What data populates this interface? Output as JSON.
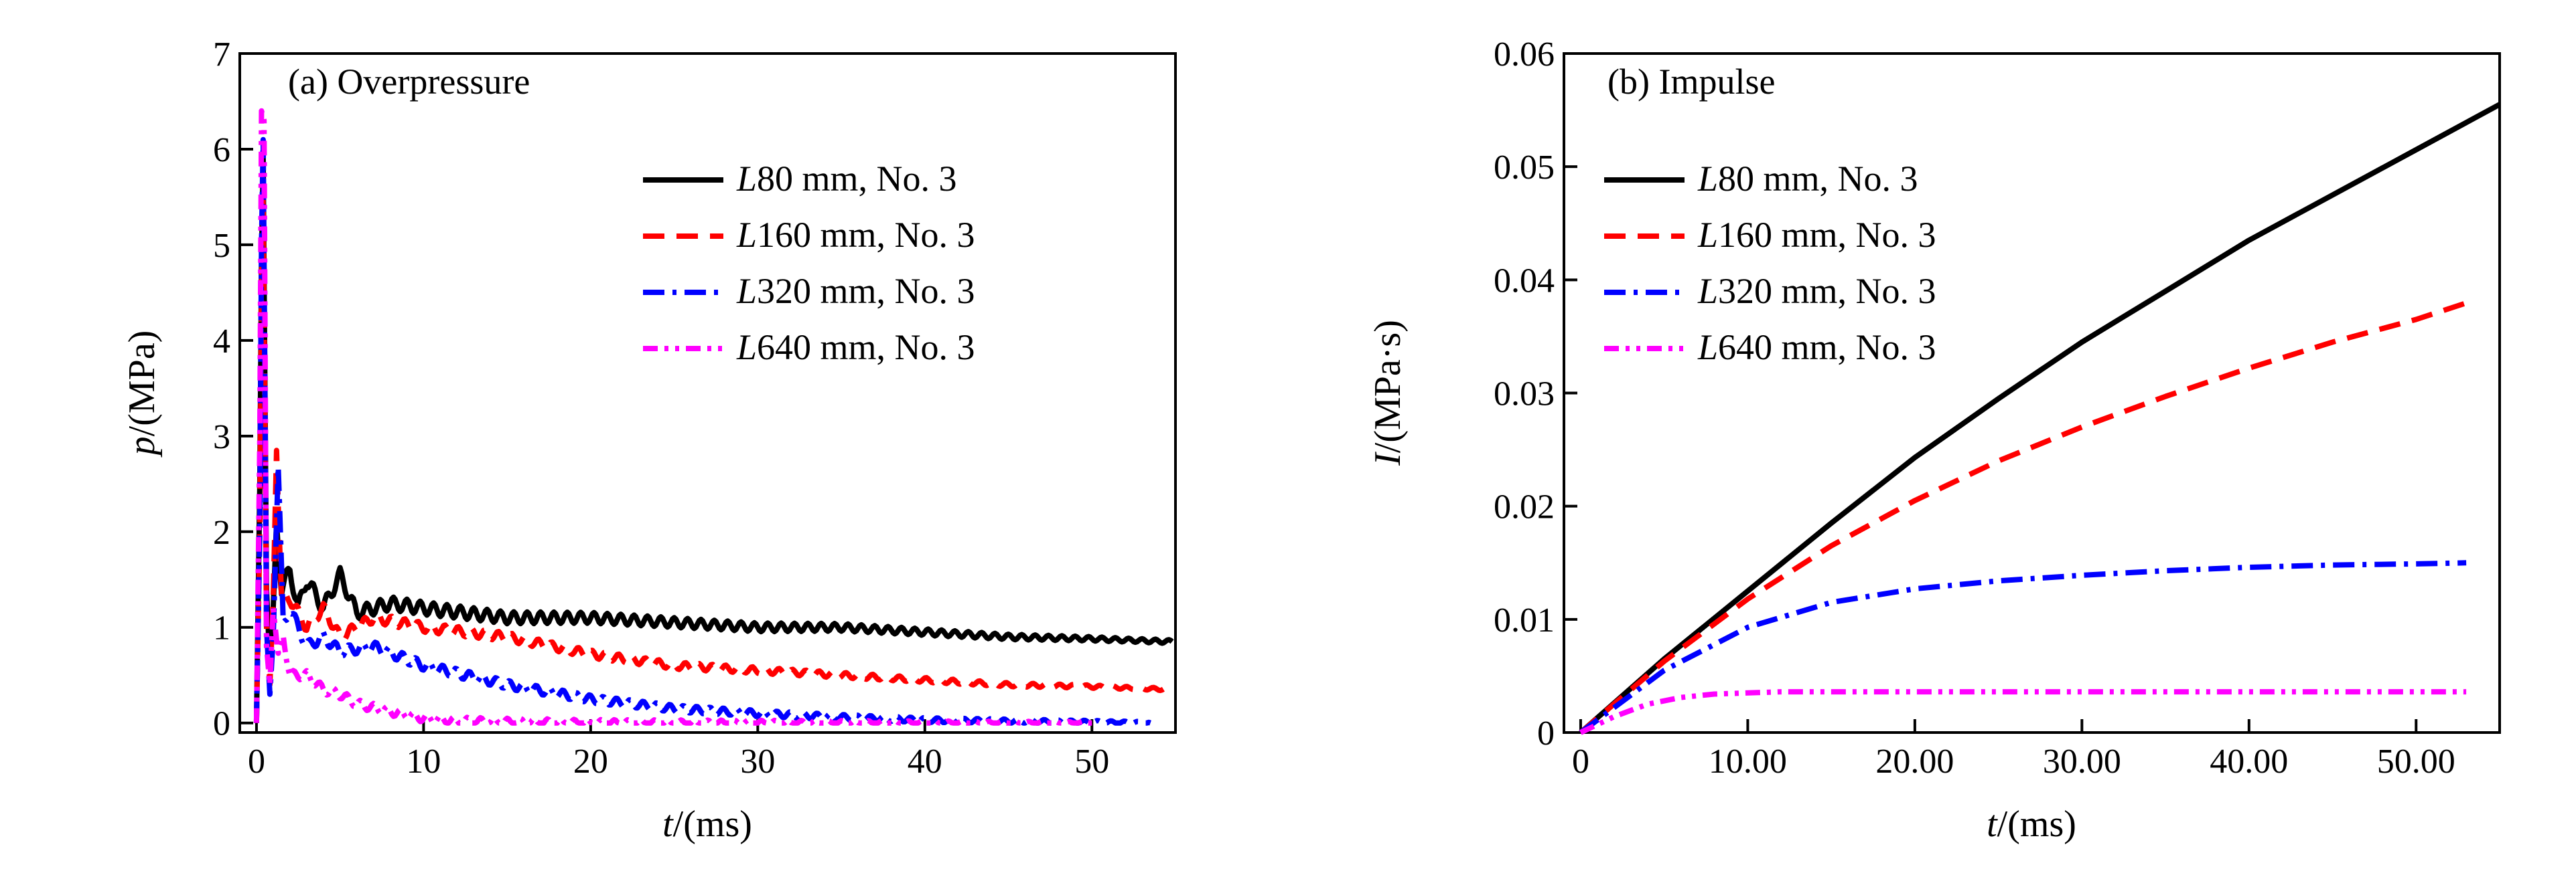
{
  "chart_data": [
    {
      "type": "line",
      "panel_label": "(a) Overpressure",
      "xlabel": "t",
      "xlabel_unit": "/(ms)",
      "ylabel": "p",
      "ylabel_unit": "/(MPa)",
      "xlim": [
        -1,
        55
      ],
      "ylim": [
        -0.1,
        7
      ],
      "xticks": [
        0,
        10,
        20,
        30,
        40,
        50
      ],
      "yticks": [
        0,
        1,
        2,
        3,
        4,
        5,
        6,
        7
      ],
      "legend_position": "upper-right",
      "series": [
        {
          "name": "L80 mm, No. 3",
          "legend_italic": "L",
          "legend_rest": "80 mm, No. 3",
          "color": "#000000",
          "dash": "solid",
          "x": [
            0.0,
            0.2,
            0.3,
            0.4,
            0.6,
            0.8,
            1.0,
            1.2,
            1.5,
            2.0,
            2.5,
            3,
            4,
            5,
            6,
            8,
            10,
            15,
            20,
            25,
            30,
            35,
            40,
            45,
            50,
            54.8
          ],
          "y": [
            0.0,
            2.5,
            4.8,
            5.9,
            1.4,
            0.6,
            1.2,
            2.1,
            1.4,
            1.6,
            1.2,
            1.5,
            1.2,
            1.55,
            1.15,
            1.25,
            1.2,
            1.1,
            1.1,
            1.05,
            1.0,
            1.0,
            0.95,
            0.9,
            0.88,
            0.85
          ],
          "osc_amp": 0.08,
          "osc_period": 0.8
        },
        {
          "name": "L160 mm, No. 3",
          "legend_italic": "L",
          "legend_rest": "160 mm, No. 3",
          "color": "#ff0000",
          "dash": "dash",
          "x": [
            0.0,
            0.2,
            0.3,
            0.4,
            0.6,
            0.8,
            1.0,
            1.2,
            1.5,
            2,
            3,
            4,
            5,
            7,
            10,
            15,
            20,
            25,
            30,
            35,
            40,
            45,
            50,
            54.8
          ],
          "y": [
            0.0,
            2.0,
            4.5,
            5.5,
            1.0,
            0.4,
            1.3,
            2.85,
            1.3,
            1.3,
            1.0,
            1.2,
            0.9,
            1.1,
            1.0,
            0.9,
            0.72,
            0.6,
            0.55,
            0.5,
            0.45,
            0.4,
            0.38,
            0.35
          ],
          "osc_amp": 0.06,
          "osc_period": 0.8
        },
        {
          "name": "L320 mm, No. 3",
          "legend_italic": "L",
          "legend_rest": "320 mm, No. 3",
          "color": "#0000ff",
          "dash": "dashdot",
          "x": [
            0.0,
            0.2,
            0.3,
            0.4,
            0.6,
            0.8,
            1.0,
            1.3,
            1.6,
            2,
            3,
            4,
            5,
            7,
            10,
            15,
            20,
            25,
            30,
            35,
            40,
            45,
            50,
            53.5
          ],
          "y": [
            0.0,
            2.0,
            5.0,
            6.1,
            1.0,
            0.3,
            0.9,
            2.7,
            1.0,
            1.2,
            0.8,
            0.9,
            0.75,
            0.8,
            0.6,
            0.4,
            0.25,
            0.15,
            0.1,
            0.06,
            0.03,
            0.02,
            0.01,
            0.0
          ],
          "osc_amp": 0.06,
          "osc_period": 0.8
        },
        {
          "name": "L640 mm, No. 3",
          "legend_italic": "L",
          "legend_rest": "640 mm, No. 3",
          "color": "#ff00ff",
          "dash": "dashdotdot",
          "x": [
            0.0,
            0.2,
            0.3,
            0.45,
            0.6,
            0.8,
            1.0,
            1.3,
            1.6,
            2,
            3,
            4,
            5,
            6,
            8,
            10,
            12,
            15,
            20,
            25,
            30,
            35,
            40,
            45,
            50
          ],
          "y": [
            0.0,
            3.0,
            6.4,
            6.3,
            0.8,
            0.4,
            1.2,
            0.7,
            0.9,
            0.5,
            0.5,
            0.35,
            0.3,
            0.2,
            0.12,
            0.05,
            0.02,
            0.01,
            0.0,
            0.0,
            0.0,
            0.0,
            0.0,
            0.0,
            0.0
          ],
          "osc_amp": 0.05,
          "osc_period": 0.8
        }
      ]
    },
    {
      "type": "line",
      "panel_label": "(b) Impulse",
      "xlabel": "t",
      "xlabel_unit": "/(ms)",
      "ylabel": "I",
      "ylabel_unit": "/(MPa·s)",
      "xlim": [
        -1,
        55
      ],
      "ylim": [
        0,
        0.06
      ],
      "xticks": [
        0,
        10,
        20,
        30,
        40,
        50
      ],
      "yticks": [
        0,
        0.01,
        0.02,
        0.03,
        0.04,
        0.05,
        0.06
      ],
      "legend_position": "upper-left",
      "series": [
        {
          "name": "L80 mm, No. 3",
          "legend_italic": "L",
          "legend_rest": "80 mm, No. 3",
          "color": "#000000",
          "dash": "solid",
          "x": [
            0,
            5,
            10,
            15,
            20,
            25,
            30,
            35,
            40,
            45,
            50,
            55
          ],
          "y": [
            0,
            0.0065,
            0.0125,
            0.0185,
            0.0243,
            0.0295,
            0.0345,
            0.039,
            0.0435,
            0.0475,
            0.0515,
            0.0555
          ]
        },
        {
          "name": "L160 mm, No. 3",
          "legend_italic": "L",
          "legend_rest": "160 mm, No. 3",
          "color": "#ff0000",
          "dash": "dash",
          "x": [
            0,
            5,
            10,
            15,
            20,
            25,
            30,
            35,
            40,
            45,
            50,
            53.5
          ],
          "y": [
            0,
            0.0063,
            0.0118,
            0.0165,
            0.0205,
            0.024,
            0.027,
            0.0297,
            0.0322,
            0.0345,
            0.0365,
            0.0382
          ]
        },
        {
          "name": "L320 mm, No. 3",
          "legend_italic": "L",
          "legend_rest": "320 mm, No. 3",
          "color": "#0000ff",
          "dash": "dashdot",
          "x": [
            0,
            5,
            10,
            15,
            20,
            25,
            30,
            35,
            40,
            45,
            50,
            53
          ],
          "y": [
            0,
            0.0055,
            0.0093,
            0.0115,
            0.0127,
            0.0134,
            0.0139,
            0.0143,
            0.0146,
            0.0148,
            0.0149,
            0.015
          ]
        },
        {
          "name": "L640 mm, No. 3",
          "legend_italic": "L",
          "legend_rest": "640 mm, No. 3",
          "color": "#ff00ff",
          "dash": "dashdotdot",
          "x": [
            0,
            2,
            4,
            6,
            8,
            10,
            12,
            15,
            20,
            30,
            40,
            50,
            53
          ],
          "y": [
            0,
            0.0014,
            0.0025,
            0.0031,
            0.0034,
            0.0035,
            0.0036,
            0.0036,
            0.0036,
            0.0036,
            0.0036,
            0.0036,
            0.0036
          ]
        }
      ]
    }
  ]
}
